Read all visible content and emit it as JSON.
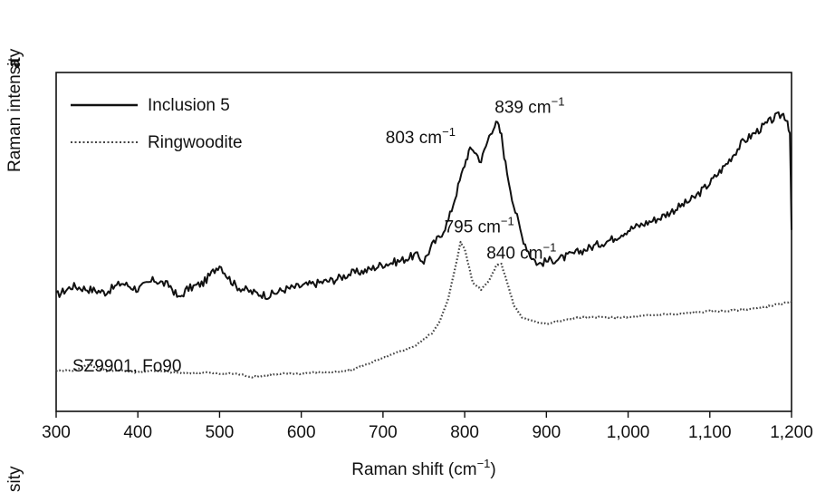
{
  "chart_data": {
    "type": "line",
    "xlabel": "Raman shift (cm",
    "xlabel_sup": "−1",
    "xlabel_close": ")",
    "ylabel": "Raman intensity",
    "panel_label": "a",
    "lower_panel_ylabel": "sity",
    "xlim": [
      300,
      1200
    ],
    "xticks": [
      300,
      400,
      500,
      600,
      700,
      800,
      900,
      1000,
      1100,
      1200
    ],
    "xtick_labels": [
      "300",
      "400",
      "500",
      "600",
      "700",
      "800",
      "900",
      "1,000",
      "1,100",
      "1,200"
    ],
    "ylim": [
      0,
      100
    ],
    "legend": {
      "placement": "top-left"
    },
    "sample_label": "SZ9901, Fo90",
    "series": [
      {
        "name": "Inclusion 5",
        "style": "solid",
        "color": "#111111",
        "x": [
          300,
          320,
          340,
          360,
          380,
          400,
          420,
          440,
          450,
          460,
          480,
          490,
          500,
          510,
          520,
          540,
          560,
          580,
          600,
          620,
          640,
          660,
          680,
          700,
          720,
          740,
          750,
          760,
          770,
          780,
          790,
          800,
          805,
          810,
          820,
          830,
          835,
          840,
          845,
          850,
          860,
          870,
          880,
          890,
          900,
          920,
          940,
          960,
          980,
          1000,
          1020,
          1040,
          1060,
          1080,
          1100,
          1120,
          1140,
          1160,
          1180,
          1190,
          1195,
          1198,
          1200
        ],
        "y": [
          33,
          36,
          35,
          34,
          37,
          35,
          38,
          36,
          32,
          35,
          37,
          40,
          43,
          39,
          36,
          34,
          33,
          35,
          36,
          37,
          38,
          40,
          41,
          43,
          44,
          46,
          44,
          49,
          52,
          57,
          66,
          75,
          79,
          80,
          76,
          84,
          87,
          88,
          84,
          75,
          62,
          52,
          46,
          43,
          44,
          45,
          47,
          49,
          51,
          54,
          56,
          58,
          61,
          64,
          69,
          75,
          82,
          86,
          90,
          91,
          89,
          85,
          54
        ]
      },
      {
        "name": "Ringwoodite",
        "style": "dotted",
        "color": "#444444",
        "x": [
          300,
          320,
          340,
          360,
          380,
          400,
          420,
          440,
          460,
          480,
          500,
          520,
          540,
          560,
          580,
          600,
          620,
          640,
          660,
          680,
          700,
          720,
          740,
          760,
          770,
          780,
          790,
          795,
          800,
          810,
          820,
          830,
          840,
          845,
          850,
          860,
          870,
          880,
          900,
          920,
          940,
          960,
          980,
          1000,
          1020,
          1040,
          1060,
          1080,
          1100,
          1120,
          1140,
          1160,
          1180,
          1200
        ],
        "y": [
          9,
          9,
          11,
          9,
          9,
          8.5,
          9,
          8.5,
          8,
          8.5,
          8,
          8,
          7,
          7.5,
          8,
          8,
          8.5,
          8.5,
          9,
          11,
          13,
          15,
          17,
          21,
          25,
          32,
          44,
          50,
          48,
          37,
          35,
          38,
          43,
          43,
          39,
          30,
          26,
          25,
          24,
          25,
          26,
          26,
          26,
          26,
          26.5,
          27,
          27,
          27.5,
          28,
          28,
          28.5,
          29,
          30,
          31
        ]
      }
    ],
    "annotations": [
      {
        "text": "803 cm",
        "sup": "−1",
        "x": 803,
        "y": 80
      },
      {
        "text": "839 cm",
        "sup": "−1",
        "x": 839,
        "y": 88
      },
      {
        "text": "795 cm",
        "sup": "−1",
        "x": 795,
        "y": 50
      },
      {
        "text": "840 cm",
        "sup": "−1",
        "x": 840,
        "y": 43
      }
    ]
  }
}
